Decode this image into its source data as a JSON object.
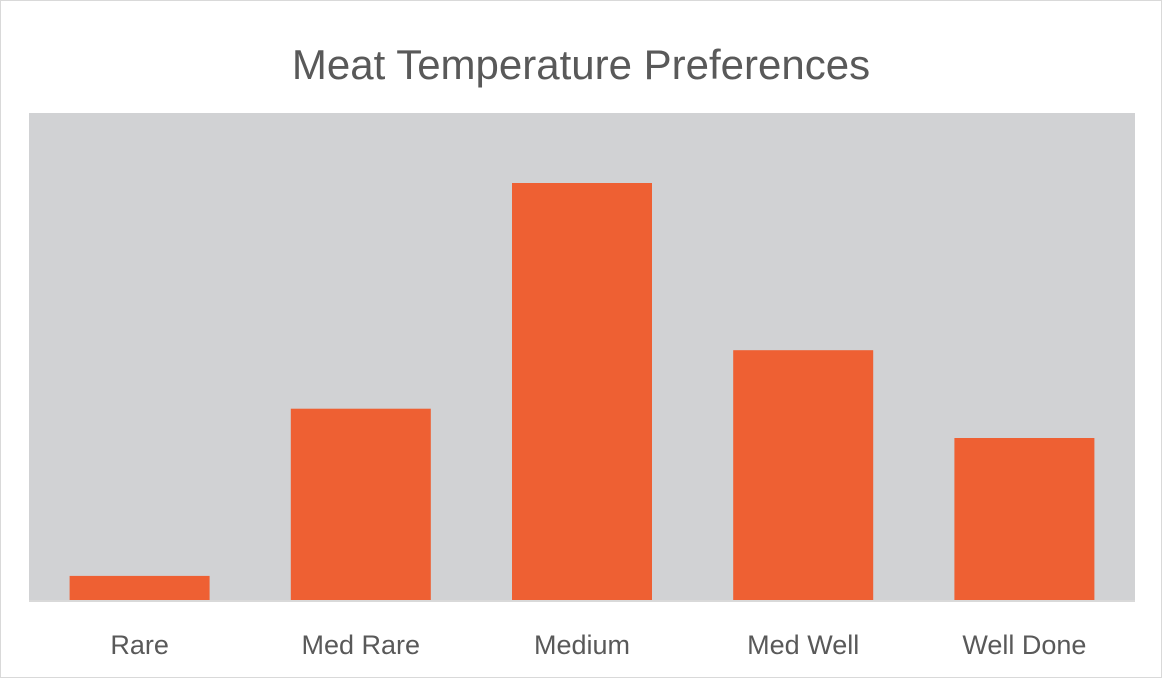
{
  "chart_data": {
    "type": "bar",
    "title": "Meat Temperature Preferences",
    "categories": [
      "Rare",
      "Med Rare",
      "Medium",
      "Med Well",
      "Well Done"
    ],
    "values": [
      6,
      46,
      100,
      60,
      39
    ],
    "ylim": [
      0,
      100
    ],
    "xlabel": "",
    "ylabel": "",
    "grid": false,
    "legend": "none",
    "colors": {
      "bar": "#EE6033",
      "plot_background": "#D1D2D4",
      "axis_line": "#D9D9D9",
      "label_text": "#595959"
    }
  }
}
